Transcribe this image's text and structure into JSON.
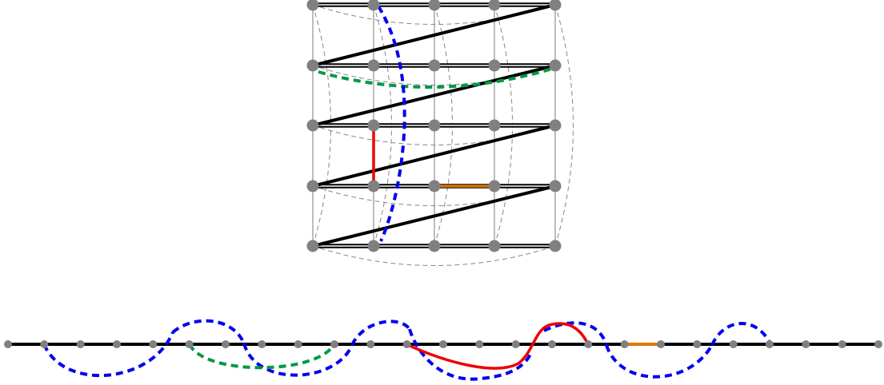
{
  "diagram": {
    "grid": {
      "rows": 5,
      "cols": 5
    },
    "line": {
      "nodes": 25
    },
    "colors": {
      "node": "#808080",
      "snake": "#000000",
      "grid_edge": "#999999",
      "wrap_edge": "#888888",
      "highlight_red": "#ee0000",
      "highlight_orange": "#dd7700",
      "highlight_green": "#009944",
      "highlight_blue": "#0000ee"
    }
  }
}
